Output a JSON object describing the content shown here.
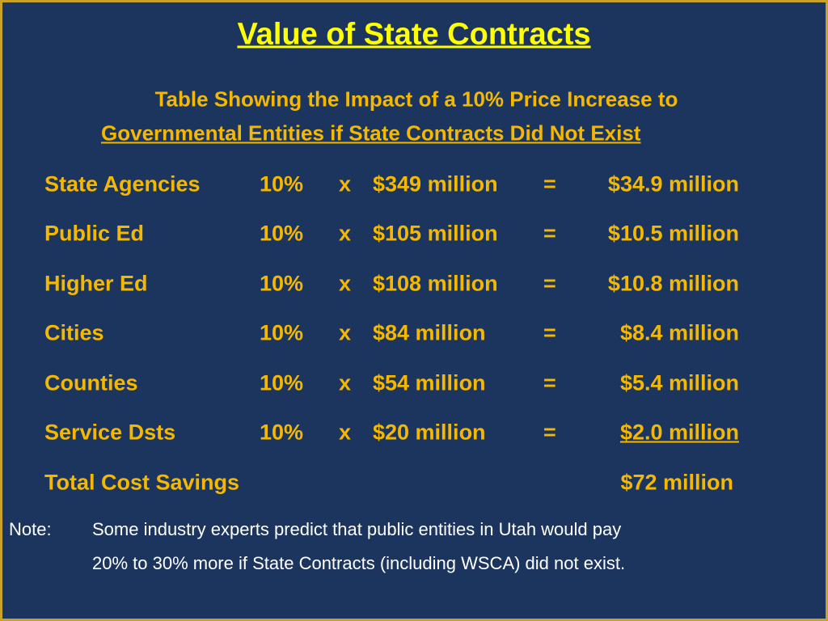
{
  "header": {
    "title": "Value of State Contracts",
    "subtitle": [
      "Table Showing the Impact of a 10% Price Increase to",
      "Governmental Entities if State Contracts Did Not Exist"
    ]
  },
  "table": {
    "rows": [
      [
        "State Agencies",
        "10%",
        "x",
        "$349 million",
        "=",
        "$34.9 million"
      ],
      [
        "Public Ed",
        "10%",
        "x",
        "$105 million",
        "=",
        "$10.5 million"
      ],
      [
        "Higher Ed",
        "10%",
        "x",
        "$108 million",
        "=",
        "$10.8 million"
      ],
      [
        "Cities",
        "10%",
        "x",
        "$84 million",
        "=",
        "$8.4 million"
      ],
      [
        "Counties",
        "10%",
        "x",
        "$54 million",
        "=",
        "$5.4 million"
      ],
      [
        "Service Dsts",
        "10%",
        "x",
        "$20 million",
        "=",
        "$2.0 million"
      ]
    ],
    "total": {
      "label": "Total Cost Savings",
      "value": "$72 million"
    }
  },
  "note": {
    "label": "Note:",
    "lines": [
      "Some industry experts predict that public entities in Utah would pay",
      "20% to 30% more if State Contracts (including WSCA) did not exist."
    ]
  }
}
